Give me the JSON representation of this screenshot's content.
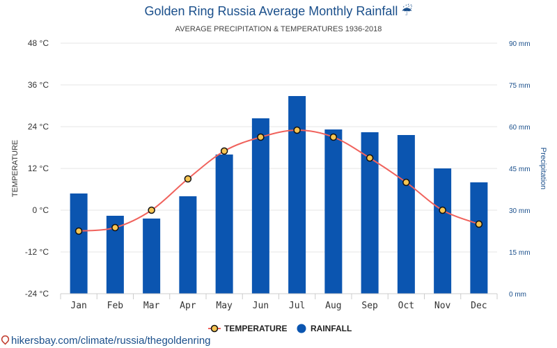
{
  "title": "Golden Ring Russia Average Monthly Rainfall",
  "title_icon": "umbrella-rain-icon",
  "subtitle": "AVERAGE PRECIPITATION & TEMPERATURES 1936-2018",
  "source_link": "hikersbay.com/climate/russia/thegoldenring",
  "colors": {
    "title": "#1a4f8b",
    "bar": "#0b55b0",
    "line": "#f0625c",
    "marker_fill": "#f7c552",
    "right_axis": "#1a4f8b"
  },
  "chart_data": {
    "type": "bar",
    "categories": [
      "Jan",
      "Feb",
      "Mar",
      "Apr",
      "May",
      "Jun",
      "Jul",
      "Aug",
      "Sep",
      "Oct",
      "Nov",
      "Dec"
    ],
    "series": [
      {
        "name": "RAINFALL",
        "type": "bar",
        "axis": "right",
        "values": [
          36,
          28,
          27,
          35,
          50,
          63,
          71,
          59,
          58,
          57,
          45,
          40
        ]
      },
      {
        "name": "TEMPERATURE",
        "type": "line",
        "axis": "left",
        "values": [
          -6,
          -5,
          0,
          9,
          17,
          21,
          23,
          21,
          15,
          8,
          0,
          -4
        ]
      }
    ],
    "y_left": {
      "label": "TEMPERATURE",
      "lim": [
        -24,
        48
      ],
      "ticks": [
        -24,
        -12,
        0,
        12,
        24,
        36,
        48
      ],
      "tick_labels": [
        "-24 °C",
        "-12 °C",
        "0 °C",
        "12 °C",
        "24 °C",
        "36 °C",
        "48 °C"
      ]
    },
    "y_right": {
      "label": "Precipitation",
      "lim": [
        0,
        90
      ],
      "ticks": [
        0,
        15,
        30,
        45,
        60,
        75,
        90
      ],
      "tick_labels": [
        "0 mm",
        "15 mm",
        "30 mm",
        "45 mm",
        "60 mm",
        "75 mm",
        "90 mm"
      ]
    },
    "grid": true,
    "legend_position": "bottom-center",
    "legend": [
      "TEMPERATURE",
      "RAINFALL"
    ]
  }
}
